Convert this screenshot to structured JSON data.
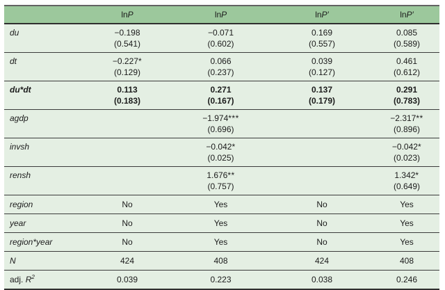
{
  "colors": {
    "header_bg": "#9cc89c",
    "row_bg": "#e4efe3",
    "rule": "#3b3b3b",
    "heavy_rule": "#2f2f2f",
    "outer_rule": "#636363",
    "text": "#1b1b1b",
    "page_bg": "#ffffff"
  },
  "table": {
    "columns": [
      {
        "header_prefix": "",
        "header_symbol": ""
      },
      {
        "header_prefix": "ln",
        "header_symbol": "P"
      },
      {
        "header_prefix": "ln",
        "header_symbol": "P"
      },
      {
        "header_prefix": "ln",
        "header_symbol": "P′"
      },
      {
        "header_prefix": "ln",
        "header_symbol": "P′"
      }
    ],
    "rows": [
      {
        "type": "coef",
        "label": "du",
        "bold": false,
        "cells": [
          {
            "est": "−0.198",
            "stars": "",
            "se": "(0.541)"
          },
          {
            "est": "−0.071",
            "stars": "",
            "se": "(0.602)"
          },
          {
            "est": "0.169",
            "stars": "",
            "se": "(0.557)"
          },
          {
            "est": "0.085",
            "stars": "",
            "se": "(0.589)"
          }
        ]
      },
      {
        "type": "coef",
        "label": "dt",
        "bold": false,
        "cells": [
          {
            "est": "−0.227",
            "stars": "*",
            "se": "(0.129)"
          },
          {
            "est": "0.066",
            "stars": "",
            "se": "(0.237)"
          },
          {
            "est": "0.039",
            "stars": "",
            "se": "(0.127)"
          },
          {
            "est": "0.461",
            "stars": "",
            "se": "(0.612)"
          }
        ]
      },
      {
        "type": "coef",
        "label": "du*dt",
        "bold": true,
        "cells": [
          {
            "est": "0.113",
            "stars": "",
            "se": "(0.183)"
          },
          {
            "est": "0.271",
            "stars": "",
            "se": "(0.167)"
          },
          {
            "est": "0.137",
            "stars": "",
            "se": "(0.179)"
          },
          {
            "est": "0.291",
            "stars": "",
            "se": "(0.783)"
          }
        ]
      },
      {
        "type": "coef",
        "label": "agdp",
        "bold": false,
        "cells": [
          null,
          {
            "est": "−1.974",
            "stars": "***",
            "se": "(0.696)"
          },
          null,
          {
            "est": "−2.317",
            "stars": "**",
            "se": "(0.896)"
          }
        ]
      },
      {
        "type": "coef",
        "label": "invsh",
        "bold": false,
        "cells": [
          null,
          {
            "est": "−0.042",
            "stars": "*",
            "se": "(0.025)"
          },
          null,
          {
            "est": "−0.042",
            "stars": "*",
            "se": "(0.023)"
          }
        ]
      },
      {
        "type": "coef",
        "label": "rensh",
        "bold": false,
        "cells": [
          null,
          {
            "est": "1.676",
            "stars": "**",
            "se": "(0.757)"
          },
          null,
          {
            "est": "1.342",
            "stars": "*",
            "se": "(0.649)"
          }
        ]
      },
      {
        "type": "single",
        "label": "region",
        "cells": [
          "No",
          "Yes",
          "No",
          "Yes"
        ]
      },
      {
        "type": "single",
        "label": "year",
        "cells": [
          "No",
          "Yes",
          "No",
          "Yes"
        ]
      },
      {
        "type": "single",
        "label": "region*year",
        "cells": [
          "No",
          "Yes",
          "No",
          "Yes"
        ]
      },
      {
        "type": "single",
        "label": "N",
        "cells": [
          "424",
          "408",
          "424",
          "408"
        ]
      },
      {
        "type": "single",
        "label_prefix": "adj. ",
        "label": "R",
        "label_sup": "2",
        "cells": [
          "0.039",
          "0.223",
          "0.038",
          "0.246"
        ]
      }
    ]
  }
}
